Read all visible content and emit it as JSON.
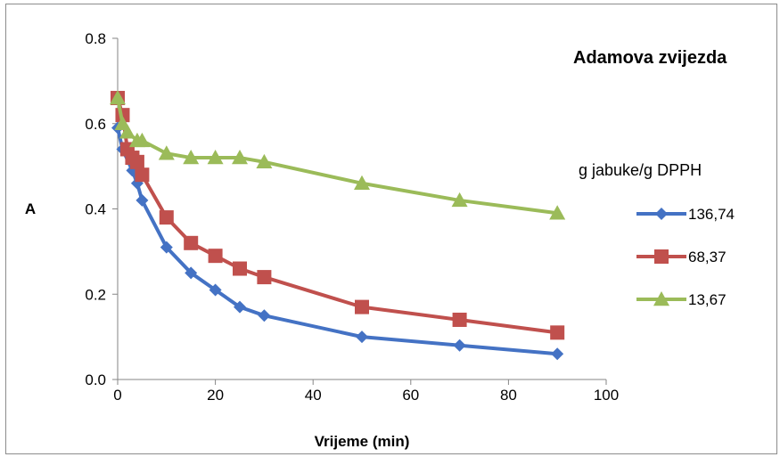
{
  "chart_data": {
    "type": "line",
    "title": "Adamova zvijezda",
    "xlabel": "Vrijeme (min)",
    "ylabel": "A",
    "xlim": [
      0,
      100
    ],
    "ylim": [
      0,
      0.8
    ],
    "xticks": [
      "0",
      "20",
      "40",
      "60",
      "80",
      "100"
    ],
    "yticks": [
      "0.0",
      "0.2",
      "0.4",
      "0.6",
      "0.8"
    ],
    "grid": false,
    "legend": {
      "title": "g jabuke/g DPPH",
      "placement": "right"
    },
    "series": [
      {
        "name": "136,74",
        "color": "#4472C4",
        "marker": "diamond",
        "x": [
          0,
          1,
          3,
          4,
          5,
          10,
          15,
          20,
          25,
          30,
          50,
          70,
          90
        ],
        "y": [
          0.59,
          0.54,
          0.49,
          0.46,
          0.42,
          0.31,
          0.25,
          0.21,
          0.17,
          0.15,
          0.1,
          0.08,
          0.06
        ]
      },
      {
        "name": "68,37",
        "color": "#C0504D",
        "marker": "square",
        "x": [
          0,
          1,
          2,
          3,
          4,
          5,
          10,
          15,
          20,
          25,
          30,
          50,
          70,
          90
        ],
        "y": [
          0.66,
          0.62,
          0.54,
          0.52,
          0.51,
          0.48,
          0.38,
          0.32,
          0.29,
          0.26,
          0.24,
          0.17,
          0.14,
          0.11
        ]
      },
      {
        "name": "13,67",
        "color": "#9BBB59",
        "marker": "triangle",
        "x": [
          0,
          1,
          2,
          4,
          5,
          10,
          15,
          20,
          25,
          30,
          50,
          70,
          90
        ],
        "y": [
          0.66,
          0.6,
          0.58,
          0.56,
          0.56,
          0.53,
          0.52,
          0.52,
          0.52,
          0.51,
          0.46,
          0.42,
          0.39
        ]
      }
    ]
  }
}
